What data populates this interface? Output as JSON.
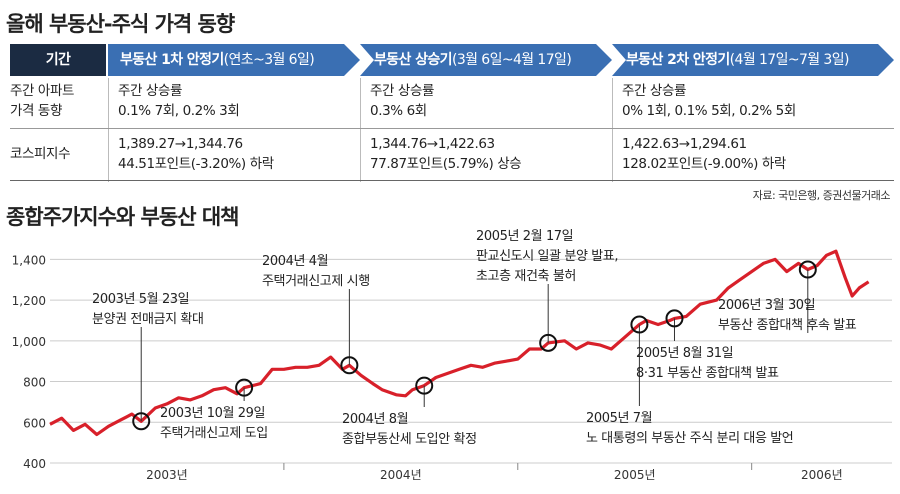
{
  "title_top": "올해 부동산-주식 가격 동향",
  "table": {
    "header_label": "기간",
    "periods": [
      {
        "bold": "부동산 1차 안정기",
        "rest": "(연초~3월 6일)"
      },
      {
        "bold": "부동산 상승기",
        "rest": "(3월 6일~4월 17일)"
      },
      {
        "bold": "부동산 2차 안정기",
        "rest": "(4월 17일~7월 3일)"
      }
    ],
    "row1_label_line1": "주간 아파트",
    "row1_label_line2": "가격 동향",
    "row2_label": "코스피지수",
    "row1": [
      {
        "l1": "주간 상승률",
        "l2": "0.1% 7회, 0.2% 3회"
      },
      {
        "l1": "주간 상승률",
        "l2": "0.3% 6회"
      },
      {
        "l1": "주간 상승률",
        "l2": "0% 1회, 0.1% 5회, 0.2% 5회"
      }
    ],
    "row2": [
      {
        "l1": "1,389.27→1,344.76",
        "l2": "44.51포인트(-3.20%) 하락"
      },
      {
        "l1": "1,344.76→1,422.63",
        "l2": "77.87포인트(5.79%) 상승"
      },
      {
        "l1": "1,422.63→1,294.61",
        "l2": "128.02포인트(-9.00%) 하락"
      }
    ]
  },
  "source": "자료: 국민은행, 증권선물거래소",
  "title_chart": "종합주가지수와 부동산 대책",
  "colors": {
    "line": "#d8202a",
    "header_dark": "#1b2b42",
    "header_blue": "#3a6fb3",
    "grid": "#cccccc"
  },
  "chart_data": {
    "type": "line",
    "title": "종합주가지수와 부동산 대책",
    "ylim": [
      400,
      1500
    ],
    "yticks": [
      400,
      600,
      800,
      1000,
      1200,
      1400
    ],
    "ytick_labels": [
      "400",
      "600",
      "800",
      "1,000",
      "1,200",
      "1,400"
    ],
    "xtick_labels": [
      {
        "label": "2003년",
        "t": 2003.5
      },
      {
        "label": "2004년",
        "t": 2004.5
      },
      {
        "label": "2005년",
        "t": 2005.5
      },
      {
        "label": "2006년",
        "t": 2006.3
      }
    ],
    "xlim": [
      2003.0,
      2006.6
    ],
    "series": [
      {
        "x": [
          2003.0,
          2003.05,
          2003.1,
          2003.15,
          2003.2,
          2003.25,
          2003.3,
          2003.35,
          2003.39,
          2003.45,
          2003.5,
          2003.55,
          2003.6,
          2003.65,
          2003.7,
          2003.75,
          2003.8,
          2003.83,
          2003.9,
          2003.95,
          2004.0,
          2004.05,
          2004.1,
          2004.15,
          2004.2,
          2004.25,
          2004.28,
          2004.33,
          2004.38,
          2004.42,
          2004.48,
          2004.52,
          2004.55,
          2004.6,
          2004.65,
          2004.7,
          2004.75,
          2004.8,
          2004.85,
          2004.9,
          2004.95,
          2005.0,
          2005.05,
          2005.1,
          2005.13,
          2005.2,
          2005.25,
          2005.3,
          2005.35,
          2005.4,
          2005.45,
          2005.5,
          2005.52,
          2005.55,
          2005.6,
          2005.65,
          2005.67,
          2005.72,
          2005.78,
          2005.85,
          2005.9,
          2005.95,
          2006.0,
          2006.05,
          2006.1,
          2006.15,
          2006.2,
          2006.24,
          2006.28,
          2006.32,
          2006.36,
          2006.4,
          2006.43,
          2006.46,
          2006.5
        ],
        "y": [
          590,
          620,
          560,
          590,
          540,
          580,
          610,
          640,
          605,
          670,
          690,
          720,
          710,
          730,
          760,
          770,
          740,
          770,
          790,
          860,
          860,
          870,
          870,
          880,
          920,
          860,
          880,
          830,
          790,
          760,
          735,
          730,
          760,
          780,
          820,
          840,
          860,
          880,
          870,
          890,
          900,
          910,
          960,
          960,
          990,
          1000,
          960,
          990,
          980,
          960,
          1010,
          1060,
          1080,
          1100,
          1080,
          1100,
          1110,
          1120,
          1180,
          1200,
          1260,
          1300,
          1340,
          1380,
          1400,
          1340,
          1380,
          1350,
          1370,
          1420,
          1440,
          1310,
          1220,
          1260,
          1290
        ]
      }
    ],
    "annotations": [
      {
        "label": "2003년 5월 23일",
        "label2": "분양권 전매금지 확대",
        "t": 2003.39
      },
      {
        "label": "2003년 10월 29일",
        "label2": "주택거래신고제 도입",
        "t": 2003.83
      },
      {
        "label": "2004년 4월",
        "label2": "주택거래신고제 시행",
        "t": 2004.28
      },
      {
        "label": "2004년 8월",
        "label2": "종합부동산세 도입안 확정",
        "t": 2004.6
      },
      {
        "label": "2005년 2월 17일",
        "label2": "판교신도시 일괄 분양 발표,",
        "label3": "초고층 재건축 불허",
        "t": 2005.13
      },
      {
        "label": "2005년 7월",
        "label2": "노 대통령의 부동산 주식 분리 대응 발언",
        "t": 2005.52
      },
      {
        "label": "2005년 8월 31일",
        "label2": "8·31 부동산 종합대책 발표",
        "t": 2005.67
      },
      {
        "label": "2006년 3월 30일",
        "label2": "부동산 종합대책 후속 발표",
        "t": 2006.24
      }
    ]
  }
}
